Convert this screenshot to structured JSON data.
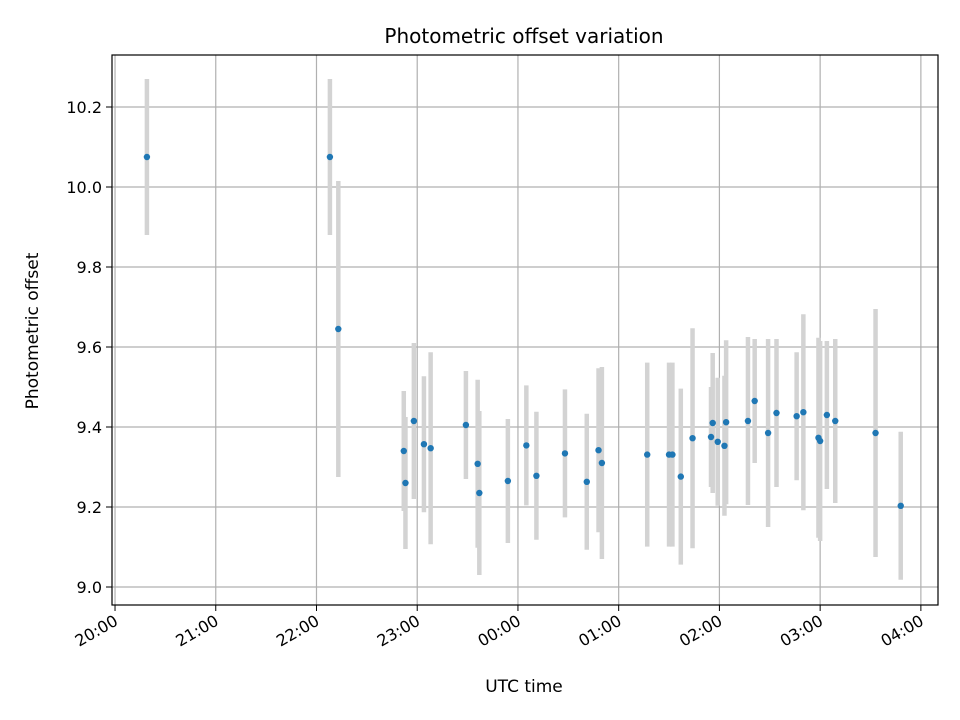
{
  "chart_data": {
    "type": "scatter",
    "title": "Photometric offset variation",
    "xlabel": "UTC time",
    "ylabel": "Photometric offset",
    "x_ticks": [
      "20:00",
      "21:00",
      "22:00",
      "23:00",
      "00:00",
      "01:00",
      "02:00",
      "03:00",
      "04:00"
    ],
    "y_ticks": [
      "9.0",
      "9.2",
      "9.4",
      "9.6",
      "9.8",
      "10.0",
      "10.2"
    ],
    "ylim": [
      8.955,
      10.33
    ],
    "grid": true,
    "colors": {
      "points": "#1f77b4",
      "errorbars": "#d3d3d3",
      "grid": "#b0b0b0"
    },
    "series": [
      {
        "points": [
          {
            "x": "20:19",
            "y": 10.075,
            "err": 0.195
          },
          {
            "x": "22:08",
            "y": 10.075,
            "err": 0.195
          },
          {
            "x": "22:13",
            "y": 9.645,
            "err": 0.37
          },
          {
            "x": "22:52",
            "y": 9.34,
            "err": 0.15
          },
          {
            "x": "22:53",
            "y": 9.26,
            "err": 0.165
          },
          {
            "x": "22:58",
            "y": 9.415,
            "err": 0.195
          },
          {
            "x": "23:04",
            "y": 9.357,
            "err": 0.17
          },
          {
            "x": "23:08",
            "y": 9.347,
            "err": 0.24
          },
          {
            "x": "23:29",
            "y": 9.405,
            "err": 0.135
          },
          {
            "x": "23:36",
            "y": 9.308,
            "err": 0.21
          },
          {
            "x": "23:37",
            "y": 9.235,
            "err": 0.205
          },
          {
            "x": "23:54",
            "y": 9.265,
            "err": 0.155
          },
          {
            "x": "00:05",
            "y": 9.354,
            "err": 0.15
          },
          {
            "x": "00:11",
            "y": 9.278,
            "err": 0.16
          },
          {
            "x": "00:28",
            "y": 9.334,
            "err": 0.16
          },
          {
            "x": "00:41",
            "y": 9.263,
            "err": 0.17
          },
          {
            "x": "00:48",
            "y": 9.342,
            "err": 0.205
          },
          {
            "x": "00:50",
            "y": 9.31,
            "err": 0.24
          },
          {
            "x": "01:17",
            "y": 9.331,
            "err": 0.23
          },
          {
            "x": "01:30",
            "y": 9.331,
            "err": 0.23
          },
          {
            "x": "01:32",
            "y": 9.331,
            "err": 0.23
          },
          {
            "x": "01:37",
            "y": 9.276,
            "err": 0.22
          },
          {
            "x": "01:44",
            "y": 9.372,
            "err": 0.275
          },
          {
            "x": "01:55",
            "y": 9.375,
            "err": 0.125
          },
          {
            "x": "01:56",
            "y": 9.41,
            "err": 0.175
          },
          {
            "x": "01:59",
            "y": 9.363,
            "err": 0.16
          },
          {
            "x": "02:03",
            "y": 9.353,
            "err": 0.175
          },
          {
            "x": "02:04",
            "y": 9.412,
            "err": 0.205
          },
          {
            "x": "02:17",
            "y": 9.415,
            "err": 0.21
          },
          {
            "x": "02:21",
            "y": 9.465,
            "err": 0.155
          },
          {
            "x": "02:29",
            "y": 9.385,
            "err": 0.235
          },
          {
            "x": "02:34",
            "y": 9.435,
            "err": 0.185
          },
          {
            "x": "02:46",
            "y": 9.427,
            "err": 0.16
          },
          {
            "x": "02:50",
            "y": 9.437,
            "err": 0.245
          },
          {
            "x": "02:59",
            "y": 9.373,
            "err": 0.25
          },
          {
            "x": "03:00",
            "y": 9.365,
            "err": 0.25
          },
          {
            "x": "03:04",
            "y": 9.43,
            "err": 0.185
          },
          {
            "x": "03:09",
            "y": 9.415,
            "err": 0.205
          },
          {
            "x": "03:33",
            "y": 9.385,
            "err": 0.31
          },
          {
            "x": "03:48",
            "y": 9.203,
            "err": 0.185
          }
        ]
      }
    ]
  }
}
